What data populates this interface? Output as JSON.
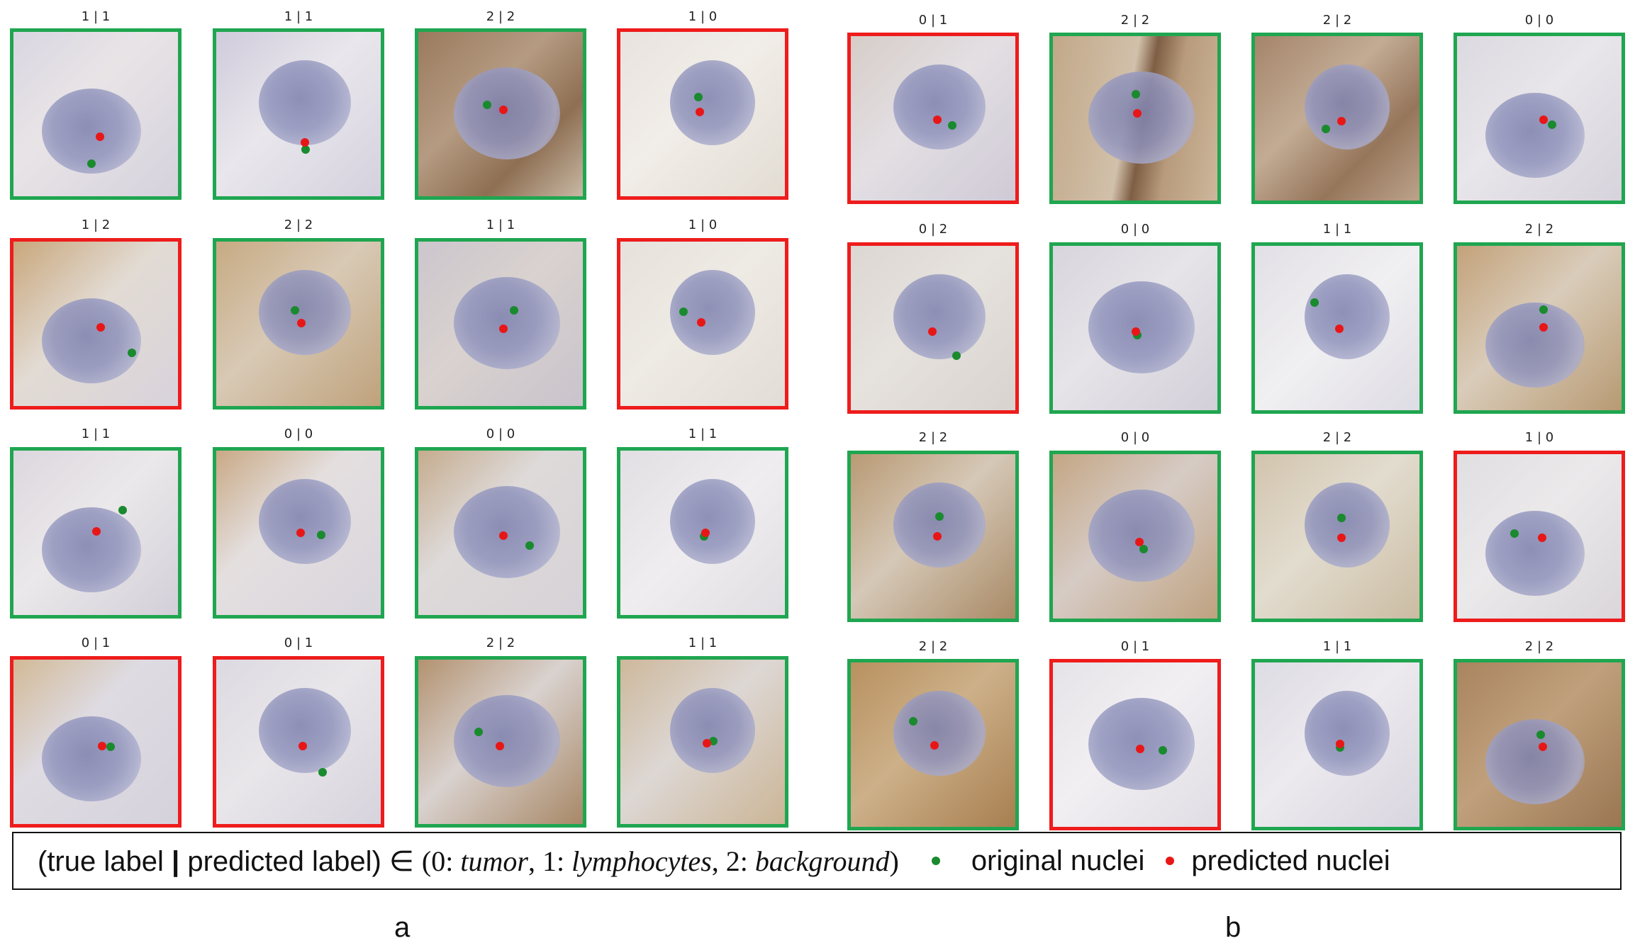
{
  "panels": [
    {
      "id": "a",
      "label": "a",
      "tiles": [
        {
          "caption": "1 | 1",
          "correct": true,
          "bg": "linear-gradient(135deg,#d9d6e2,#e8e4e6 40%,#d6d2dd)"
        },
        {
          "caption": "1 | 1",
          "correct": true,
          "bg": "linear-gradient(135deg,#cfcbdc,#e9e7ec 45%,#d4d1de)"
        },
        {
          "caption": "2 | 2",
          "correct": true,
          "bg": "linear-gradient(135deg,#9a7a5e,#b59b82 40%,#8e6f53 70%,#c8b8a4)"
        },
        {
          "caption": "1 | 0",
          "correct": false,
          "bg": "linear-gradient(135deg,#e8e3de,#f1ede8 45%,#e2dcd3)"
        },
        {
          "caption": "1 | 2",
          "correct": false,
          "bg": "linear-gradient(135deg,#c9a77c,#e2dbd3 45%,#d8d3dc)"
        },
        {
          "caption": "2 | 2",
          "correct": true,
          "bg": "linear-gradient(135deg,#c7aa83,#d8c9b5 45%,#bfa27c)"
        },
        {
          "caption": "1 | 1",
          "correct": true,
          "bg": "linear-gradient(135deg,#ccc6ce,#d9d2cf 45%,#c9c3cc)"
        },
        {
          "caption": "1 | 0",
          "correct": false,
          "bg": "linear-gradient(135deg,#e6e1db,#eeeae4 45%,#e2ddd6)"
        },
        {
          "caption": "1 | 1",
          "correct": true,
          "bg": "linear-gradient(135deg,#dcd7de,#ebe8ea 45%,#d3cfd9)"
        },
        {
          "caption": "0 | 0",
          "correct": true,
          "bg": "linear-gradient(135deg,#c9a985,#e4dfdf 40%,#d9d5de)"
        },
        {
          "caption": "0 | 0",
          "correct": true,
          "bg": "linear-gradient(135deg,#c5ac8e,#dedad9 40%,#d7d2d8)"
        },
        {
          "caption": "1 | 1",
          "correct": true,
          "bg": "linear-gradient(135deg,#e2dfe4,#efedef 50%,#e1dee3)"
        },
        {
          "caption": "0 | 1",
          "correct": false,
          "bg": "linear-gradient(135deg,#d2b996,#dedbe2 40%,#d5d2dc)"
        },
        {
          "caption": "0 | 1",
          "correct": false,
          "bg": "linear-gradient(135deg,#ddd9e1,#e9e6ea 45%,#d6d3dd)"
        },
        {
          "caption": "2 | 2",
          "correct": true,
          "bg": "linear-gradient(135deg,#b39270,#d9d2cf 45%,#a88867)"
        },
        {
          "caption": "1 | 1",
          "correct": true,
          "bg": "linear-gradient(135deg,#cdb89b,#ddd7d4 45%,#cbb596)"
        }
      ]
    },
    {
      "id": "b",
      "label": "b",
      "tiles": [
        {
          "caption": "0 | 1",
          "correct": false,
          "bg": "linear-gradient(135deg,#d6cdc8,#e3dfe3 45%,#cfcad6)"
        },
        {
          "caption": "2 | 2",
          "correct": true,
          "bg": "linear-gradient(100deg,#c2a888 0%,#d1c0aa 45%,#7e5e44 55%,#b89b7c 70%,#cdb79c)"
        },
        {
          "caption": "2 | 2",
          "correct": true,
          "bg": "linear-gradient(135deg,#a5856a,#c2ab94 40%,#96765b 70%,#bca38b)"
        },
        {
          "caption": "0 | 0",
          "correct": true,
          "bg": "linear-gradient(135deg,#dcd9e0,#e8e6ea 45%,#d6d3dc)"
        },
        {
          "caption": "0 | 2",
          "correct": false,
          "bg": "linear-gradient(135deg,#dcd7d3,#e6e2dd 45%,#d8d3cf)"
        },
        {
          "caption": "0 | 0",
          "correct": true,
          "bg": "linear-gradient(135deg,#d8d5dd,#e6e4e8 45%,#d2cfd9)"
        },
        {
          "caption": "1 | 1",
          "correct": true,
          "bg": "linear-gradient(135deg,#e2e0e6,#f0eff1 50%,#dedce4)"
        },
        {
          "caption": "2 | 2",
          "correct": true,
          "bg": "linear-gradient(135deg,#c3a27a,#d9ccba 45%,#b89a73)"
        },
        {
          "caption": "2 | 2",
          "correct": true,
          "bg": "linear-gradient(135deg,#b99a74,#d5c8b7 45%,#a98a66)"
        },
        {
          "caption": "0 | 0",
          "correct": true,
          "bg": "linear-gradient(135deg,#c4a684,#d6cbc5 45%,#bfa280)"
        },
        {
          "caption": "2 | 2",
          "correct": true,
          "bg": "linear-gradient(135deg,#d2c4ad,#e2dccf 45%,#cbbca2)"
        },
        {
          "caption": "1 | 0",
          "correct": false,
          "bg": "linear-gradient(135deg,#e1dee2,#ebe9ea 45%,#dad6db)"
        },
        {
          "caption": "2 | 2",
          "correct": true,
          "bg": "linear-gradient(135deg,#b8915f,#cdb089 45%,#a77f50)"
        },
        {
          "caption": "0 | 1",
          "correct": false,
          "bg": "linear-gradient(135deg,#e6e3e8,#f1eff2 45%,#e0dde4)"
        },
        {
          "caption": "1 | 1",
          "correct": true,
          "bg": "linear-gradient(135deg,#dedce4,#eceaee 45%,#d8d5df)"
        },
        {
          "caption": "2 | 2",
          "correct": true,
          "bg": "linear-gradient(135deg,#a9845f,#c0a07c 45%,#9a7653)"
        }
      ]
    }
  ],
  "legend": {
    "open": "(true label",
    "bar": "|",
    "close": "predicted label)",
    "in": "∈",
    "paren_open": "(0: ",
    "c0": "tumor",
    "sep1": ", 1: ",
    "c1": "lymphocytes",
    "sep2": ", 2: ",
    "c2": "background",
    "paren_close": ")",
    "green_label": "original nuclei",
    "red_label": "predicted nuclei"
  },
  "colors": {
    "correct_border": "#1fa650",
    "wrong_border": "#ee1c1c",
    "original_dot": "#1a8a2e",
    "predicted_dot": "#e81717"
  }
}
